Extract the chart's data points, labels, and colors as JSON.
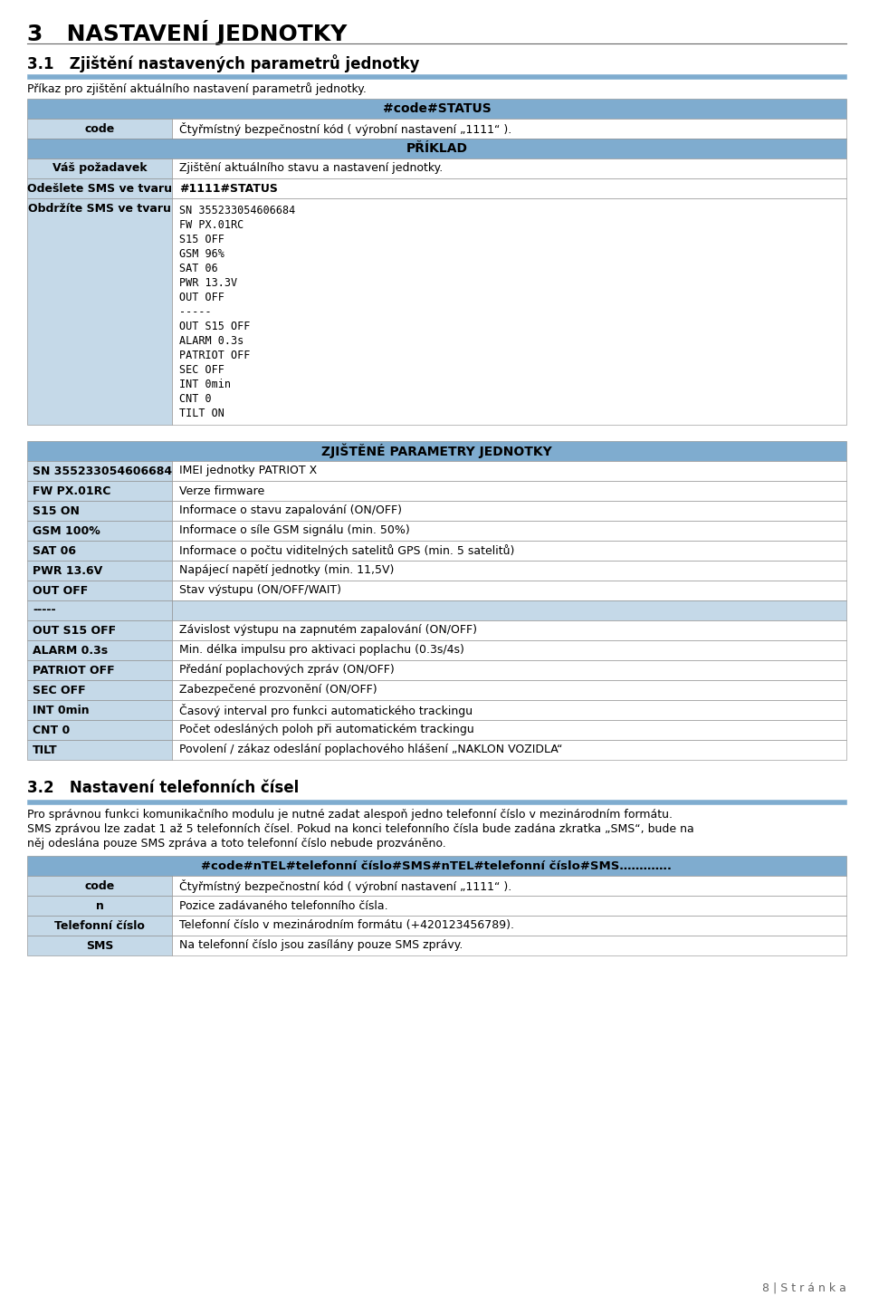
{
  "bg_color": "#ffffff",
  "header_blue": "#7faccf",
  "light_blue": "#c5d9e8",
  "row_white": "#ffffff",
  "border_color": "#888888",
  "chapter_title": "3   NASTAVENÍ JEDNOTKY",
  "section_title": "3.1   Zjištění nastavených parametrů jednotky",
  "section_desc": "Příkaz pro zjištění aktuálního nastavení parametrů jednotky.",
  "cmd_header": "#code#STATUS",
  "cmd_row": [
    "code",
    "Čtyřmístný bezpečnostní kód ( výrobní nastavení „1111“ )."
  ],
  "priklad_header": "PŘÍKLAD",
  "priklad_rows": [
    [
      "Váš požadavek",
      "Zjištění aktuálního stavu a nastavení jednotky.",
      false
    ],
    [
      "Odešlete SMS ve tvaru",
      "#1111#STATUS",
      true
    ],
    [
      "Obdržíte SMS ve tvaru",
      "SN 355233054606684\nFW PX.01RC\nS15 OFF\nGSM 96%\nSAT 06\nPWR 13.3V\nOUT OFF\n-----\nOUT S15 OFF\nALARM 0.3s\nPATRIOT OFF\nSEC OFF\nINT 0min\nCNT 0\nTILT ON",
      false
    ]
  ],
  "zjistene_header": "ZJIŠTĚNÉ PARAMETRY JEDNOTKY",
  "zjistene_rows": [
    [
      "SN 355233054606684",
      "IMEI jednotky PATRIOT X"
    ],
    [
      "FW PX.01RC",
      "Verze firmware"
    ],
    [
      "S15 ON",
      "Informace o stavu zapalování (ON/OFF)"
    ],
    [
      "GSM 100%",
      "Informace o síle GSM signálu (min. 50%)"
    ],
    [
      "SAT 06",
      "Informace o počtu viditelných satelitů GPS (min. 5 satelitů)"
    ],
    [
      "PWR 13.6V",
      "Napájecí napětí jednotky (min. 11,5V)"
    ],
    [
      "OUT OFF",
      "Stav výstupu (ON/OFF/WAIT)"
    ],
    [
      "-----",
      ""
    ],
    [
      "OUT S15 OFF",
      "Závislost výstupu na zapnutém zapalování (ON/OFF)"
    ],
    [
      "ALARM 0.3s",
      "Min. délka impulsu pro aktivaci poplachu (0.3s/4s)"
    ],
    [
      "PATRIOT OFF",
      "Předání poplachových zpráv (ON/OFF)"
    ],
    [
      "SEC OFF",
      "Zabezpečené prozvonění (ON/OFF)"
    ],
    [
      "INT 0min",
      "Časový interval pro funkci automatického trackingu"
    ],
    [
      "CNT 0",
      "Počet odesláných poloh při automatickém trackingu"
    ],
    [
      "TILT",
      "Povolení / zákaz odeslání poplachového hlášení „NAKLON VOZIDLA“"
    ]
  ],
  "section2_title": "3.2   Nastavení telefonních čísel",
  "section2_desc_lines": [
    "Pro správnou funkci komunikačního modulu je nutné zadat alespoň jedno telefonní číslo v mezinárodním formátu.",
    "SMS zprávou lze zadat 1 až 5 telefonních čísel. Pokud na konci telefonního čísla bude zadána zkratka „SMS“, bude na",
    "něj odeslána pouze SMS zpráva a toto telefonní číslo nebude prozváněno."
  ],
  "cmd2_header": "#code#nTEL#telefonní číslo#SMS#nTEL#telefonní číslo#SMS………….",
  "cmd2_rows": [
    [
      "code",
      "Čtyřmístný bezpečnostní kód ( výrobní nastavení „1111“ )."
    ],
    [
      "n",
      "Pozice zadávaného telefonního čísla."
    ],
    [
      "Telefonní číslo",
      "Telefonní číslo v mezinárodním formátu (+420123456789)."
    ],
    [
      "SMS",
      "Na telefonní číslo jsou zasílány pouze SMS zprávy."
    ]
  ],
  "page_number": "8 | S t r á n k a"
}
